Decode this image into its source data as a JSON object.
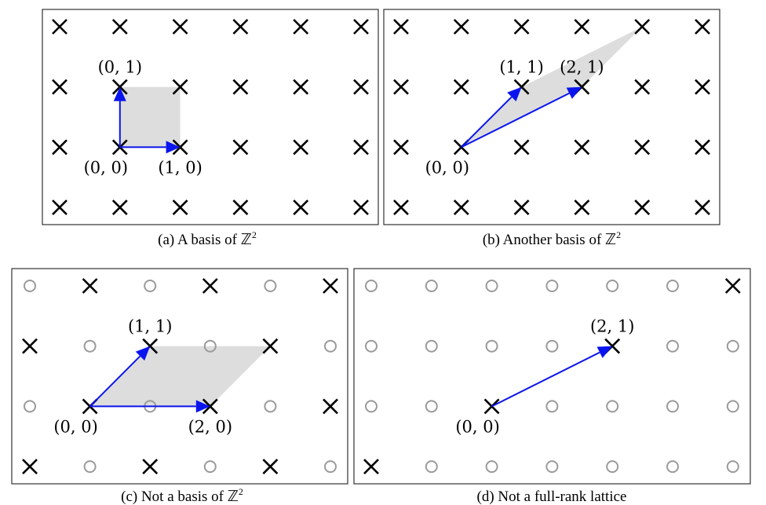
{
  "panels": [
    {
      "id": "a",
      "caption": "(a)  A basis of ℤ",
      "caption_sup": "2",
      "cols": 6,
      "rows": 4,
      "origin": [
        1,
        2
      ],
      "all_lattice": true,
      "shade": [
        [
          0,
          0
        ],
        [
          1,
          0
        ],
        [
          1,
          1
        ],
        [
          0,
          1
        ]
      ],
      "vectors": [
        [
          1,
          0
        ],
        [
          0,
          1
        ]
      ],
      "labels": [
        {
          "text": "(0, 0)",
          "at": [
            0,
            0
          ],
          "pos": "below-left"
        },
        {
          "text": "(1, 0)",
          "at": [
            1,
            0
          ],
          "pos": "below"
        },
        {
          "text": "(0, 1)",
          "at": [
            0,
            1
          ],
          "pos": "above"
        }
      ]
    },
    {
      "id": "b",
      "caption": "(b)  Another basis of ℤ",
      "caption_sup": "2",
      "cols": 6,
      "rows": 4,
      "origin": [
        1,
        2
      ],
      "all_lattice": true,
      "shade": [
        [
          0,
          0
        ],
        [
          2,
          1
        ],
        [
          3,
          2
        ],
        [
          1,
          1
        ]
      ],
      "vectors": [
        [
          1,
          1
        ],
        [
          2,
          1
        ]
      ],
      "labels": [
        {
          "text": "(0, 0)",
          "at": [
            0,
            0
          ],
          "pos": "below-left"
        },
        {
          "text": "(1, 1)",
          "at": [
            1,
            1
          ],
          "pos": "above"
        },
        {
          "text": "(2, 1)",
          "at": [
            2,
            1
          ],
          "pos": "above"
        }
      ]
    },
    {
      "id": "c",
      "caption": "(c)  Not a basis of ℤ",
      "caption_sup": "2",
      "cols": 6,
      "rows": 4,
      "origin": [
        1,
        2
      ],
      "all_lattice": false,
      "lattice_rule": "sum_even",
      "shade": [
        [
          0,
          0
        ],
        [
          2,
          0
        ],
        [
          3,
          1
        ],
        [
          1,
          1
        ]
      ],
      "vectors": [
        [
          2,
          0
        ],
        [
          1,
          1
        ]
      ],
      "labels": [
        {
          "text": "(0, 0)",
          "at": [
            0,
            0
          ],
          "pos": "below-left"
        },
        {
          "text": "(2, 0)",
          "at": [
            2,
            0
          ],
          "pos": "below"
        },
        {
          "text": "(1, 1)",
          "at": [
            1,
            1
          ],
          "pos": "above"
        }
      ]
    },
    {
      "id": "d",
      "caption": "(d)  Not a full-rank lattice",
      "caption_sup": "",
      "cols": 7,
      "rows": 4,
      "origin": [
        2,
        2
      ],
      "all_lattice": false,
      "lattice_rule": "multiples_2_1",
      "shade": [],
      "vectors": [
        [
          2,
          1
        ]
      ],
      "labels": [
        {
          "text": "(0, 0)",
          "at": [
            0,
            0
          ],
          "pos": "below-left"
        },
        {
          "text": "(2, 1)",
          "at": [
            2,
            1
          ],
          "pos": "above"
        }
      ]
    }
  ],
  "colors": {
    "vector": "#0a14ee",
    "shade": "#dddddd",
    "lattice_point": "#000000",
    "non_lattice_point": "#9a9a9a"
  }
}
